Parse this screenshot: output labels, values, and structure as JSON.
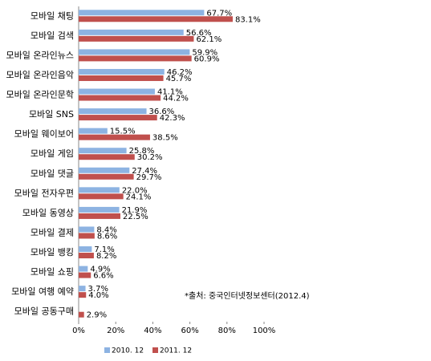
{
  "chart_data": {
    "type": "hbar",
    "categories": [
      "모바일 채팅",
      "모바일 검색",
      "모바일 온라인뉴스",
      "모바일 온라인음악",
      "모바일 온라인문학",
      "모바일 SNS",
      "모바일 웨이보어",
      "모바일 게임",
      "모바일 댓글",
      "모바일 전자우편",
      "모바일 동영상",
      "모바일 결제",
      "모바일 뱅킹",
      "모바일 쇼핑",
      "모바일 여행 예약",
      "모바일 공동구매"
    ],
    "series": [
      {
        "name": "2010. 12",
        "color": "#8db3e2",
        "values": [
          67.7,
          56.6,
          59.9,
          46.2,
          41.1,
          36.6,
          15.5,
          25.8,
          27.4,
          22.0,
          21.9,
          8.4,
          7.1,
          4.9,
          3.7,
          null
        ],
        "value_labels": [
          "67.7%",
          "56.6%",
          "59.9%",
          "46.2%",
          "41.1%",
          "36.6%",
          "15.5%",
          "25.8%",
          "27.4%",
          "22.0%",
          "21.9%",
          "8.4%",
          "7.1%",
          "4.9%",
          "3.7%",
          null
        ]
      },
      {
        "name": "2011. 12",
        "color": "#c0504d",
        "values": [
          83.1,
          62.1,
          60.9,
          45.7,
          44.2,
          42.3,
          38.5,
          30.2,
          29.7,
          24.1,
          22.5,
          8.6,
          8.2,
          6.6,
          4.0,
          2.9
        ],
        "value_labels": [
          "83.1%",
          "62.1%",
          "60.9%",
          "45.7%",
          "44.2%",
          "42.3%",
          "38.5%",
          "30.2%",
          "29.7%",
          "24.1%",
          "22.5%",
          "8.6%",
          "8.2%",
          "6.6%",
          "4.0%",
          "2.9%"
        ]
      }
    ],
    "xlim": [
      0,
      100
    ],
    "xticks": [
      {
        "value": 0,
        "label": "0%"
      },
      {
        "value": 20,
        "label": "20%"
      },
      {
        "value": 40,
        "label": "40%"
      },
      {
        "value": 60,
        "label": "60%"
      },
      {
        "value": 80,
        "label": "80%"
      },
      {
        "value": 100,
        "label": "100%"
      }
    ],
    "annotation": "*출처: 중국인터넷정보센터(2012.4)",
    "legend": "bottom"
  }
}
